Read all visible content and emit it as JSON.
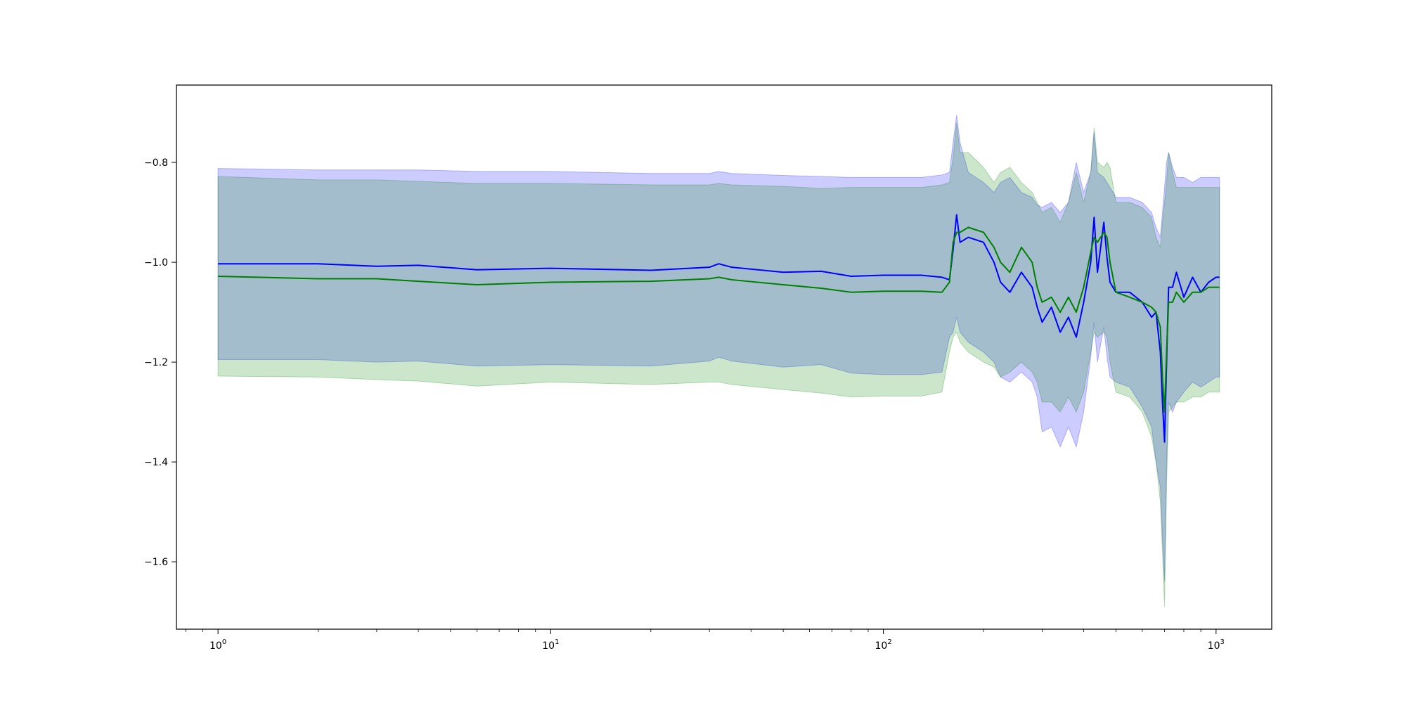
{
  "chart_data": {
    "type": "line",
    "title": "",
    "xlabel": "",
    "ylabel": "",
    "xscale": "log",
    "xlim": [
      0.75,
      1470
    ],
    "ylim": [
      -1.735,
      -0.645
    ],
    "grid": false,
    "legend": "none",
    "x_ticks": [
      {
        "value": 1,
        "base": "10",
        "exp": "0"
      },
      {
        "value": 10,
        "base": "10",
        "exp": "1"
      },
      {
        "value": 100,
        "base": "10",
        "exp": "2"
      },
      {
        "value": 1000,
        "base": "10",
        "exp": "3"
      }
    ],
    "y_ticks": [
      {
        "value": -0.8,
        "label": "−0.8"
      },
      {
        "value": -1.0,
        "label": "−1.0"
      },
      {
        "value": -1.2,
        "label": "−1.2"
      },
      {
        "value": -1.4,
        "label": "−1.4"
      },
      {
        "value": -1.6,
        "label": "−1.6"
      }
    ],
    "series": [
      {
        "color": "#0000ff",
        "band_color": "#0000ff",
        "band_opacity": 0.2,
        "x": [
          1,
          2,
          3,
          4,
          6,
          10,
          20,
          30,
          32,
          35,
          50,
          65,
          80,
          100,
          130,
          150,
          158,
          162,
          166,
          170,
          180,
          200,
          215,
          225,
          240,
          260,
          280,
          290,
          300,
          320,
          340,
          360,
          380,
          400,
          420,
          430,
          440,
          460,
          470,
          480,
          500,
          550,
          600,
          640,
          660,
          680,
          690,
          700,
          710,
          720,
          740,
          760,
          800,
          850,
          900,
          950,
          1000,
          1024
        ],
        "y": [
          -1.003,
          -1.003,
          -1.008,
          -1.006,
          -1.015,
          -1.012,
          -1.016,
          -1.01,
          -1.003,
          -1.01,
          -1.02,
          -1.018,
          -1.028,
          -1.026,
          -1.026,
          -1.03,
          -1.035,
          -0.975,
          -0.905,
          -0.96,
          -0.95,
          -0.96,
          -1.0,
          -1.04,
          -1.06,
          -1.02,
          -1.05,
          -1.09,
          -1.12,
          -1.09,
          -1.14,
          -1.11,
          -1.15,
          -1.08,
          -1.0,
          -0.91,
          -1.02,
          -0.92,
          -0.99,
          -1.04,
          -1.06,
          -1.06,
          -1.08,
          -1.11,
          -1.1,
          -1.18,
          -1.28,
          -1.36,
          -1.2,
          -1.05,
          -1.05,
          -1.02,
          -1.07,
          -1.03,
          -1.06,
          -1.04,
          -1.03,
          -1.03
        ],
        "y_upper": [
          -0.812,
          -0.815,
          -0.815,
          -0.815,
          -0.818,
          -0.818,
          -0.822,
          -0.822,
          -0.818,
          -0.822,
          -0.826,
          -0.828,
          -0.83,
          -0.83,
          -0.83,
          -0.825,
          -0.82,
          -0.76,
          -0.705,
          -0.76,
          -0.82,
          -0.84,
          -0.86,
          -0.84,
          -0.83,
          -0.86,
          -0.87,
          -0.885,
          -0.89,
          -0.88,
          -0.9,
          -0.88,
          -0.8,
          -0.86,
          -0.82,
          -0.74,
          -0.82,
          -0.83,
          -0.84,
          -0.85,
          -0.87,
          -0.87,
          -0.88,
          -0.9,
          -0.93,
          -0.95,
          -0.9,
          -0.85,
          -0.8,
          -0.78,
          -0.81,
          -0.83,
          -0.83,
          -0.84,
          -0.83,
          -0.83,
          -0.83,
          -0.83
        ],
        "y_lower": [
          -1.195,
          -1.195,
          -1.2,
          -1.198,
          -1.208,
          -1.205,
          -1.208,
          -1.198,
          -1.19,
          -1.198,
          -1.21,
          -1.205,
          -1.222,
          -1.225,
          -1.225,
          -1.22,
          -1.15,
          -1.14,
          -1.11,
          -1.14,
          -1.16,
          -1.18,
          -1.2,
          -1.23,
          -1.24,
          -1.22,
          -1.24,
          -1.27,
          -1.34,
          -1.33,
          -1.37,
          -1.33,
          -1.37,
          -1.3,
          -1.19,
          -1.12,
          -1.2,
          -1.13,
          -1.19,
          -1.23,
          -1.24,
          -1.25,
          -1.29,
          -1.33,
          -1.4,
          -1.45,
          -1.55,
          -1.64,
          -1.4,
          -1.28,
          -1.3,
          -1.28,
          -1.26,
          -1.24,
          -1.25,
          -1.24,
          -1.23,
          -1.23
        ]
      },
      {
        "color": "#008000",
        "band_color": "#008000",
        "band_opacity": 0.2,
        "x": [
          1,
          2,
          3,
          4,
          6,
          10,
          20,
          30,
          32,
          35,
          50,
          65,
          80,
          100,
          130,
          150,
          158,
          162,
          166,
          170,
          180,
          200,
          215,
          225,
          240,
          260,
          280,
          290,
          300,
          320,
          340,
          360,
          380,
          400,
          420,
          430,
          440,
          460,
          470,
          480,
          500,
          550,
          600,
          640,
          660,
          680,
          690,
          700,
          710,
          720,
          740,
          760,
          800,
          850,
          900,
          950,
          1000,
          1024
        ],
        "y": [
          -1.028,
          -1.033,
          -1.033,
          -1.038,
          -1.045,
          -1.04,
          -1.038,
          -1.033,
          -1.03,
          -1.035,
          -1.045,
          -1.052,
          -1.06,
          -1.058,
          -1.058,
          -1.06,
          -1.04,
          -0.96,
          -0.94,
          -0.94,
          -0.93,
          -0.94,
          -0.97,
          -1.0,
          -1.02,
          -0.97,
          -1.0,
          -1.05,
          -1.08,
          -1.07,
          -1.1,
          -1.07,
          -1.1,
          -1.05,
          -0.98,
          -0.95,
          -0.96,
          -0.94,
          -0.95,
          -1.0,
          -1.06,
          -1.07,
          -1.08,
          -1.09,
          -1.1,
          -1.13,
          -1.23,
          -1.3,
          -1.18,
          -1.08,
          -1.08,
          -1.06,
          -1.08,
          -1.06,
          -1.06,
          -1.05,
          -1.05,
          -1.05
        ],
        "y_upper": [
          -0.828,
          -0.835,
          -0.835,
          -0.838,
          -0.842,
          -0.842,
          -0.845,
          -0.845,
          -0.842,
          -0.845,
          -0.848,
          -0.852,
          -0.85,
          -0.85,
          -0.85,
          -0.845,
          -0.84,
          -0.79,
          -0.72,
          -0.78,
          -0.78,
          -0.81,
          -0.84,
          -0.82,
          -0.81,
          -0.84,
          -0.86,
          -0.88,
          -0.9,
          -0.89,
          -0.92,
          -0.88,
          -0.82,
          -0.88,
          -0.82,
          -0.73,
          -0.8,
          -0.81,
          -0.8,
          -0.81,
          -0.88,
          -0.88,
          -0.89,
          -0.91,
          -0.95,
          -0.97,
          -0.92,
          -0.88,
          -0.84,
          -0.78,
          -0.82,
          -0.85,
          -0.85,
          -0.85,
          -0.85,
          -0.85,
          -0.85,
          -0.85
        ],
        "y_lower": [
          -1.228,
          -1.23,
          -1.235,
          -1.238,
          -1.248,
          -1.24,
          -1.245,
          -1.24,
          -1.24,
          -1.245,
          -1.255,
          -1.262,
          -1.27,
          -1.268,
          -1.268,
          -1.26,
          -1.18,
          -1.15,
          -1.14,
          -1.16,
          -1.18,
          -1.2,
          -1.21,
          -1.23,
          -1.22,
          -1.2,
          -1.22,
          -1.24,
          -1.28,
          -1.28,
          -1.3,
          -1.27,
          -1.3,
          -1.26,
          -1.18,
          -1.14,
          -1.15,
          -1.14,
          -1.15,
          -1.2,
          -1.26,
          -1.27,
          -1.3,
          -1.35,
          -1.4,
          -1.48,
          -1.58,
          -1.69,
          -1.45,
          -1.3,
          -1.29,
          -1.28,
          -1.28,
          -1.27,
          -1.27,
          -1.26,
          -1.26,
          -1.26
        ]
      }
    ]
  }
}
